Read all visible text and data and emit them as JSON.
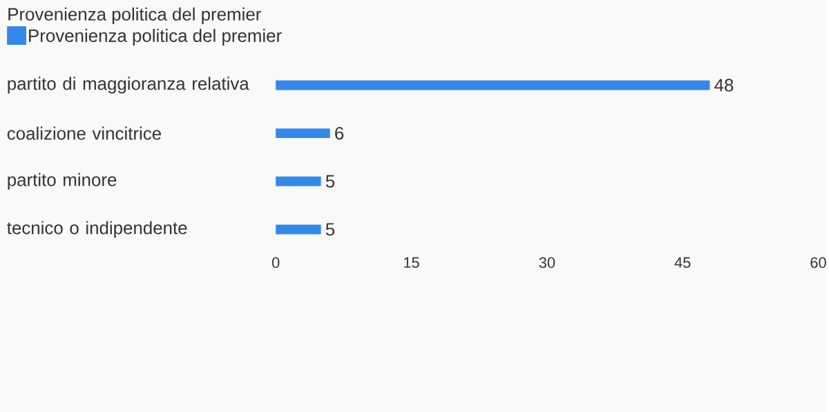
{
  "chart_data": {
    "type": "bar",
    "orientation": "horizontal",
    "title": "Provenienza politica del premier",
    "categories": [
      "partito di maggioranza relativa",
      "coalizione vincitrice",
      "partito minore",
      "tecnico o indipendente"
    ],
    "series": [
      {
        "name": "Provenienza politica del premier",
        "color": "#3388ea",
        "values": [
          48,
          6,
          5,
          5
        ]
      }
    ],
    "xlim": [
      0,
      60
    ],
    "xticks": [
      0,
      15,
      30,
      45,
      60
    ],
    "data_labels": true,
    "legend": "top left",
    "grid": false
  }
}
